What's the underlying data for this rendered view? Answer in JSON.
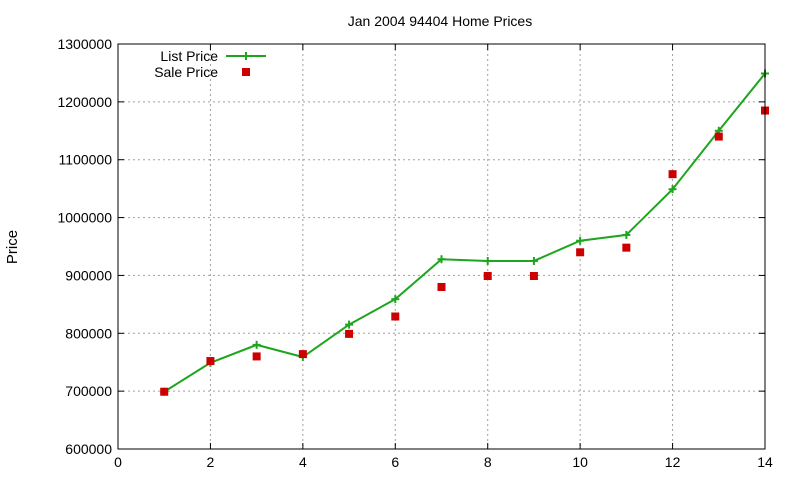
{
  "chart_data": {
    "type": "line",
    "title": "Jan 2004 94404 Home Prices",
    "xlabel": "",
    "ylabel": "Price",
    "xlim": [
      0,
      14
    ],
    "ylim": [
      600000,
      1300000
    ],
    "x_ticks": [
      0,
      2,
      4,
      6,
      8,
      10,
      12,
      14
    ],
    "y_ticks": [
      600000,
      700000,
      800000,
      900000,
      1000000,
      1100000,
      1200000,
      1300000
    ],
    "grid": true,
    "legend": "top-left",
    "series": [
      {
        "name": "List Price",
        "style": "line+cross",
        "color": "#1ea51e",
        "x": [
          1,
          2,
          3,
          4,
          5,
          6,
          7,
          8,
          9,
          10,
          11,
          12,
          13,
          14
        ],
        "y": [
          699000,
          749000,
          780000,
          759000,
          815000,
          859000,
          928000,
          925000,
          925000,
          960000,
          970000,
          1049000,
          1150000,
          1249000
        ]
      },
      {
        "name": "Sale Price",
        "style": "square",
        "color": "#cc0000",
        "x": [
          1,
          2,
          3,
          4,
          5,
          6,
          7,
          8,
          9,
          10,
          11,
          12,
          13,
          14
        ],
        "y": [
          699000,
          752000,
          760000,
          764000,
          799000,
          829000,
          880000,
          899000,
          899000,
          940000,
          948000,
          1075000,
          1140000,
          1185000
        ]
      }
    ]
  }
}
